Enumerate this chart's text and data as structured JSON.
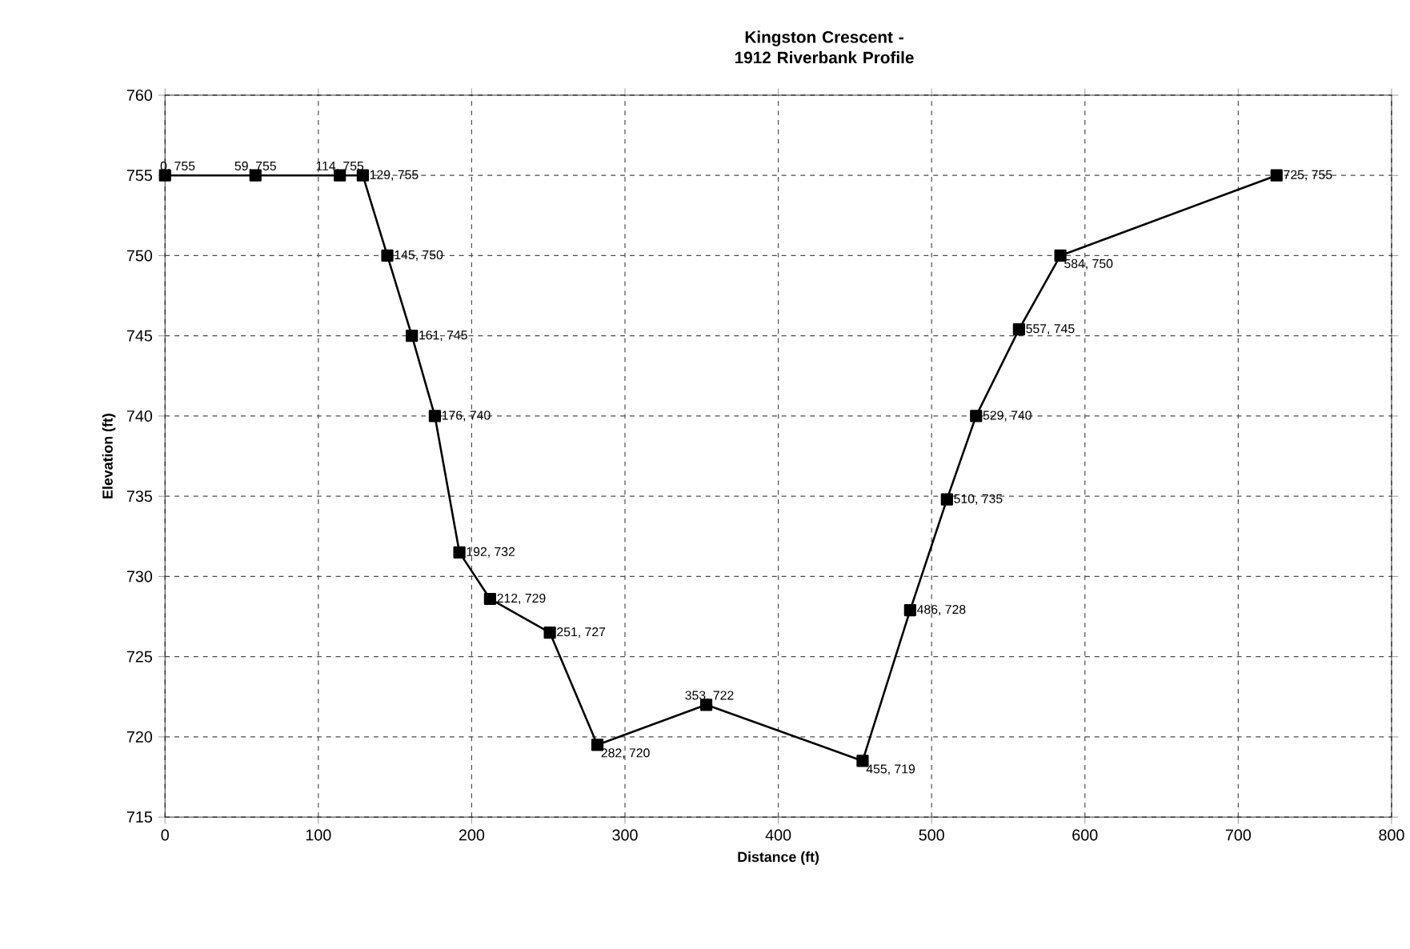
{
  "chart_data": {
    "type": "line",
    "title": "Kingston Crescent - 1912 Riverbank Profile",
    "xlabel": "Distance (ft)",
    "ylabel": "Elevation (ft)",
    "x": [
      0,
      59,
      114,
      129,
      145,
      161,
      176,
      192,
      212,
      251,
      282,
      353,
      455,
      486,
      510,
      529,
      557,
      584,
      725
    ],
    "values": [
      755,
      755,
      755,
      755,
      750,
      745,
      740,
      731.5,
      728.6,
      726.5,
      719.5,
      722,
      718.5,
      727.9,
      734.8,
      740,
      745.4,
      750,
      755
    ],
    "value_labels": [
      "0, 755",
      "59, 755",
      "114, 755",
      "129, 755",
      "145, 750",
      "161, 745",
      "176, 740",
      "192, 732",
      "212, 729",
      "251, 727",
      "282, 720",
      "353, 722",
      "455, 719",
      "486, 728",
      "510, 735",
      "529, 740",
      "557, 745",
      "584, 750",
      "725, 755"
    ],
    "color": "#000000",
    "marker": "square",
    "line_style": "solid",
    "grid": true,
    "xlim": [
      0,
      800
    ],
    "xticks": [
      0,
      100,
      200,
      300,
      400,
      500,
      600,
      700,
      800
    ],
    "ylim": [
      715,
      760
    ],
    "yticks": [
      715,
      720,
      725,
      730,
      735,
      740,
      745,
      750,
      755,
      760
    ]
  }
}
